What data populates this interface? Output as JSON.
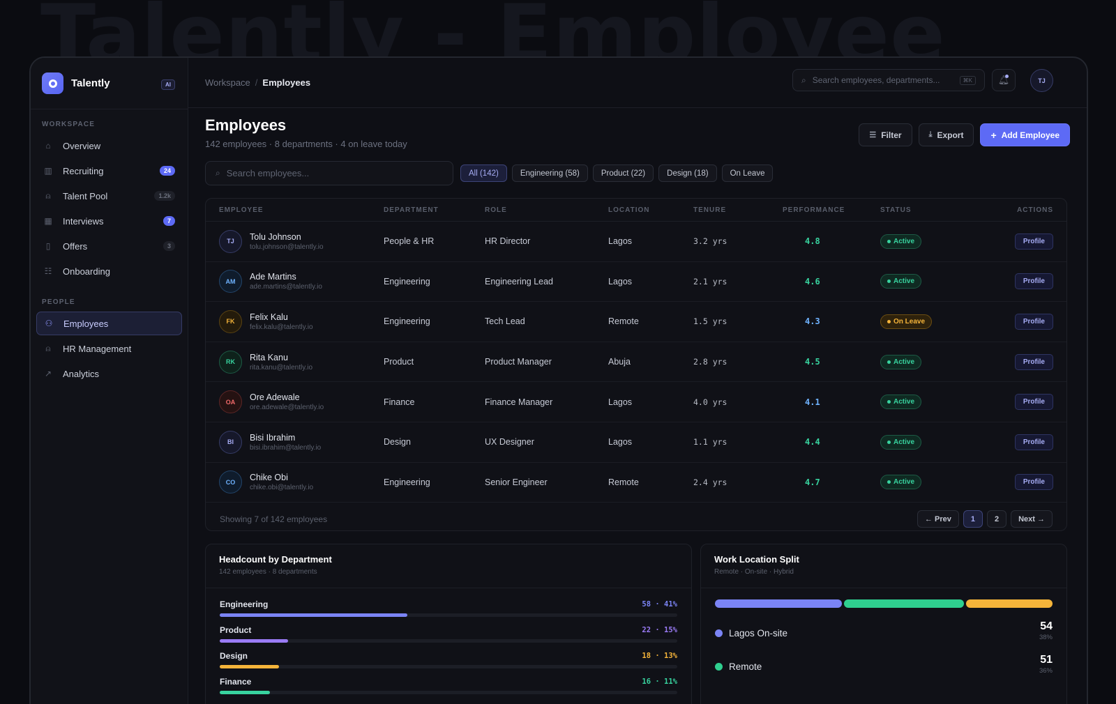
{
  "ghost_title": "Talently - Employee",
  "brand": {
    "name": "Talently",
    "ai_tag": "AI"
  },
  "sidebar": {
    "workspace_label": "WORKSPACE",
    "workspace_items": [
      {
        "label": "Overview",
        "icon": "home-icon",
        "badge": ""
      },
      {
        "label": "Recruiting",
        "icon": "bar-chart-icon",
        "badge": "24",
        "badge_style": "blue"
      },
      {
        "label": "Talent Pool",
        "icon": "user-icon",
        "badge": "1.2k",
        "badge_style": "grey"
      },
      {
        "label": "Interviews",
        "icon": "calendar-icon",
        "badge": "7",
        "badge_style": "blue"
      },
      {
        "label": "Offers",
        "icon": "bookmark-icon",
        "badge": "3",
        "badge_style": "grey"
      },
      {
        "label": "Onboarding",
        "icon": "checklist-icon",
        "badge": ""
      }
    ],
    "people_label": "PEOPLE",
    "people_items": [
      {
        "label": "Employees",
        "icon": "users-icon",
        "active": true
      },
      {
        "label": "HR Management",
        "icon": "user-icon",
        "active": false
      },
      {
        "label": "Analytics",
        "icon": "trend-icon",
        "active": false
      }
    ]
  },
  "topbar": {
    "breadcrumb_root": "Workspace",
    "breadcrumb_sep": "/",
    "breadcrumb_current": "Employees",
    "search_placeholder": "Search employees, departments...",
    "search_kbd": "⌘K",
    "avatar_initials": "TJ"
  },
  "page": {
    "title": "Employees",
    "subtitle": "142 employees · 8 departments · 4 on leave today",
    "filter_label": "Filter",
    "export_label": "Export",
    "add_label": "Add Employee"
  },
  "filters": {
    "search_placeholder": "Search employees...",
    "chips": [
      {
        "label": "All (142)",
        "active": true
      },
      {
        "label": "Engineering (58)",
        "active": false
      },
      {
        "label": "Product (22)",
        "active": false
      },
      {
        "label": "Design (18)",
        "active": false
      },
      {
        "label": "On Leave",
        "active": false
      }
    ]
  },
  "table": {
    "columns": [
      "EMPLOYEE",
      "DEPARTMENT",
      "ROLE",
      "LOCATION",
      "TENURE",
      "PERFORMANCE",
      "STATUS",
      "ACTIONS"
    ],
    "rows": [
      {
        "initials": "TJ",
        "name": "Tolu Johnson",
        "email": "tolu.johnson@talently.io",
        "department": "People & HR",
        "role": "HR Director",
        "location": "Lagos",
        "tenure": "3.2 yrs",
        "performance": "4.8",
        "perf_color": "#38d39f",
        "status": "Active",
        "status_kind": "active",
        "action": "Profile",
        "avatar_fg": "#a7adf5",
        "avatar_bg": "#16182a",
        "avatar_border": "#363c66"
      },
      {
        "initials": "AM",
        "name": "Ade Martins",
        "email": "ade.martins@talently.io",
        "department": "Engineering",
        "role": "Engineering Lead",
        "location": "Lagos",
        "tenure": "2.1 yrs",
        "performance": "4.6",
        "perf_color": "#38d39f",
        "status": "Active",
        "status_kind": "active",
        "action": "Profile",
        "avatar_fg": "#6fb3ff",
        "avatar_bg": "#0f1c2c",
        "avatar_border": "#23456a"
      },
      {
        "initials": "FK",
        "name": "Felix Kalu",
        "email": "felix.kalu@talently.io",
        "department": "Engineering",
        "role": "Tech Lead",
        "location": "Remote",
        "tenure": "1.5 yrs",
        "performance": "4.3",
        "perf_color": "#6fb3ff",
        "status": "On Leave",
        "status_kind": "leave",
        "action": "Profile",
        "avatar_fg": "#f5b43a",
        "avatar_bg": "#241b0b",
        "avatar_border": "#5a4312"
      },
      {
        "initials": "RK",
        "name": "Rita Kanu",
        "email": "rita.kanu@talently.io",
        "department": "Product",
        "role": "Product Manager",
        "location": "Abuja",
        "tenure": "2.8 yrs",
        "performance": "4.5",
        "perf_color": "#38d39f",
        "status": "Active",
        "status_kind": "active",
        "action": "Profile",
        "avatar_fg": "#38d39f",
        "avatar_bg": "#0e221b",
        "avatar_border": "#1d5a45"
      },
      {
        "initials": "OA",
        "name": "Ore Adewale",
        "email": "ore.adewale@talently.io",
        "department": "Finance",
        "role": "Finance Manager",
        "location": "Lagos",
        "tenure": "4.0 yrs",
        "performance": "4.1",
        "perf_color": "#6fb3ff",
        "status": "Active",
        "status_kind": "active",
        "action": "Profile",
        "avatar_fg": "#f26a6a",
        "avatar_bg": "#251212",
        "avatar_border": "#5c2626"
      },
      {
        "initials": "BI",
        "name": "Bisi Ibrahim",
        "email": "bisi.ibrahim@talently.io",
        "department": "Design",
        "role": "UX Designer",
        "location": "Lagos",
        "tenure": "1.1 yrs",
        "performance": "4.4",
        "perf_color": "#38d39f",
        "status": "Active",
        "status_kind": "active",
        "action": "Profile",
        "avatar_fg": "#a7adf5",
        "avatar_bg": "#16182a",
        "avatar_border": "#363c66"
      },
      {
        "initials": "CO",
        "name": "Chike Obi",
        "email": "chike.obi@talently.io",
        "department": "Engineering",
        "role": "Senior Engineer",
        "location": "Remote",
        "tenure": "2.4 yrs",
        "performance": "4.7",
        "perf_color": "#38d39f",
        "status": "Active",
        "status_kind": "active",
        "action": "Profile",
        "avatar_fg": "#6fb3ff",
        "avatar_bg": "#0f1c2c",
        "avatar_border": "#23456a"
      }
    ],
    "footer_text": "Showing 7 of 142 employees",
    "pager": {
      "prev": "← Prev",
      "pages": [
        "1",
        "2"
      ],
      "current": "1",
      "next": "Next →"
    }
  },
  "headcount": {
    "title": "Headcount by Department",
    "subtitle": "142 employees · 8 departments",
    "departments": [
      {
        "name": "Engineering",
        "value": "58 · 41%",
        "fraction": 0.41,
        "color": "#7b84f5"
      },
      {
        "name": "Product",
        "value": "22 · 15%",
        "fraction": 0.15,
        "color": "#9a7bf5"
      },
      {
        "name": "Design",
        "value": "18 · 13%",
        "fraction": 0.13,
        "color": "#f5b43a"
      },
      {
        "name": "Finance",
        "value": "16 · 11%",
        "fraction": 0.11,
        "color": "#38d39f"
      }
    ]
  },
  "location_split": {
    "title": "Work Location Split",
    "subtitle": "Remote · On-site · Hybrid",
    "segments": [
      {
        "fraction": 0.38,
        "color": "#7b84f5"
      },
      {
        "fraction": 0.36,
        "color": "#2fcf8f"
      },
      {
        "fraction": 0.26,
        "color": "#f5b43a"
      }
    ],
    "items": [
      {
        "name": "Lagos On-site",
        "count": "54",
        "pct": "38%",
        "color": "#7b84f5"
      },
      {
        "name": "Remote",
        "count": "51",
        "pct": "36%",
        "color": "#2fcf8f"
      }
    ]
  }
}
